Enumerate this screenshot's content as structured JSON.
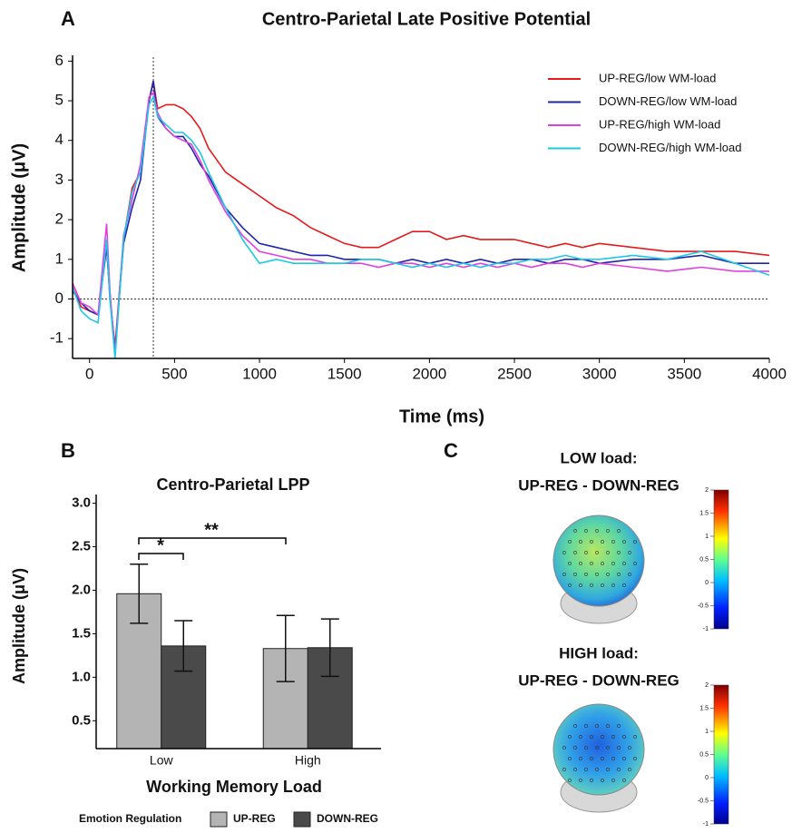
{
  "chart_data": [
    {
      "type": "line",
      "panel": "A",
      "title": "Centro-Parietal Late Positive Potential",
      "xlabel": "Time (ms)",
      "ylabel": "Amplitude (μV)",
      "x": [
        -100,
        -50,
        0,
        50,
        100,
        120,
        150,
        200,
        250,
        300,
        350,
        375,
        400,
        450,
        500,
        550,
        600,
        650,
        700,
        800,
        900,
        1000,
        1100,
        1200,
        1300,
        1400,
        1500,
        1600,
        1700,
        1800,
        1900,
        2000,
        2100,
        2200,
        2300,
        2400,
        2500,
        2600,
        2700,
        2800,
        2900,
        3000,
        3200,
        3400,
        3600,
        3800,
        4000
      ],
      "series": [
        {
          "name": "UP-REG/low WM-load",
          "color": "#e41a1c",
          "values": [
            0.3,
            -0.2,
            -0.3,
            -0.4,
            1.4,
            0.0,
            -1.2,
            1.5,
            2.8,
            3.2,
            5.0,
            5.5,
            4.8,
            4.9,
            4.9,
            4.8,
            4.6,
            4.3,
            3.8,
            3.2,
            2.9,
            2.6,
            2.3,
            2.1,
            1.8,
            1.6,
            1.4,
            1.3,
            1.3,
            1.5,
            1.7,
            1.7,
            1.5,
            1.6,
            1.5,
            1.5,
            1.5,
            1.4,
            1.3,
            1.4,
            1.3,
            1.4,
            1.3,
            1.2,
            1.2,
            1.2,
            1.1
          ]
        },
        {
          "name": "DOWN-REG/low WM-load",
          "color": "#1f24a8",
          "values": [
            0.2,
            -0.1,
            -0.3,
            -0.4,
            1.3,
            0.1,
            -1.3,
            1.4,
            2.3,
            3.0,
            5.0,
            5.5,
            4.6,
            4.3,
            4.1,
            4.1,
            3.8,
            3.4,
            3.1,
            2.3,
            1.8,
            1.4,
            1.3,
            1.2,
            1.1,
            1.1,
            1.0,
            1.0,
            1.0,
            0.9,
            1.0,
            0.9,
            1.0,
            0.9,
            1.0,
            0.9,
            1.0,
            1.0,
            0.9,
            1.0,
            1.0,
            0.9,
            1.0,
            1.0,
            1.1,
            0.9,
            0.9
          ]
        },
        {
          "name": "UP-REG/high WM-load",
          "color": "#e040e0",
          "values": [
            0.4,
            -0.1,
            -0.2,
            -0.4,
            1.9,
            0.2,
            -1.4,
            1.6,
            2.5,
            3.4,
            5.1,
            5.2,
            4.7,
            4.3,
            4.1,
            4.0,
            3.9,
            3.5,
            3.0,
            2.2,
            1.6,
            1.2,
            1.1,
            1.0,
            1.0,
            0.9,
            0.9,
            0.9,
            0.8,
            0.9,
            0.9,
            0.8,
            0.9,
            0.8,
            0.9,
            0.8,
            0.9,
            0.8,
            0.9,
            0.9,
            0.8,
            0.9,
            0.8,
            0.7,
            0.8,
            0.7,
            0.7
          ]
        },
        {
          "name": "DOWN-REG/high WM-load",
          "color": "#1ec8e6",
          "values": [
            0.3,
            -0.3,
            -0.5,
            -0.6,
            1.5,
            0.0,
            -1.5,
            1.5,
            2.7,
            3.2,
            4.9,
            5.1,
            4.6,
            4.4,
            4.2,
            4.2,
            4.0,
            3.7,
            3.2,
            2.3,
            1.5,
            0.9,
            1.0,
            0.9,
            0.9,
            0.9,
            0.9,
            1.0,
            1.0,
            0.9,
            0.8,
            0.9,
            0.8,
            0.9,
            0.8,
            0.9,
            0.9,
            1.0,
            1.0,
            1.1,
            1.0,
            1.0,
            1.1,
            1.0,
            1.2,
            0.9,
            0.6
          ]
        }
      ],
      "xlim": [
        -100,
        4000
      ],
      "ylim": [
        -1.5,
        6.1
      ],
      "xticks": [
        0,
        500,
        1000,
        1500,
        2000,
        2500,
        3000,
        3500,
        4000
      ],
      "yticks": [
        -1,
        0,
        1,
        2,
        3,
        4,
        5,
        6
      ],
      "reference_lines": {
        "x": 375,
        "y": 0
      }
    },
    {
      "type": "bar",
      "panel": "B",
      "title": "Centro-Parietal LPP",
      "xlabel": "Working Memory Load",
      "ylabel": "Amplitude (μV)",
      "categories": [
        "Low",
        "High"
      ],
      "series": [
        {
          "name": "UP-REG",
          "color": "#b4b4b4",
          "values": [
            1.96,
            1.33
          ],
          "errors": [
            0.34,
            0.38
          ]
        },
        {
          "name": "DOWN-REG",
          "color": "#4a4a4a",
          "values": [
            1.36,
            1.34
          ],
          "errors": [
            0.29,
            0.33
          ]
        }
      ],
      "ylim": [
        0.18,
        3.1
      ],
      "yticks": [
        {
          "value": 0.5,
          "label": "0.5"
        },
        {
          "value": 1,
          "label": "1.0"
        },
        {
          "value": 1.5,
          "label": "1.5"
        },
        {
          "value": 2,
          "label": "2.0"
        },
        {
          "value": 2.5,
          "label": "2.5"
        },
        {
          "value": 3,
          "label": "3.0"
        }
      ],
      "legend_title": "Emotion Regulation",
      "annotations": [
        "*",
        "**"
      ]
    },
    {
      "type": "topomap",
      "panel": "C",
      "title": [
        "LOW load:",
        "UP-REG - DOWN-REG"
      ],
      "clim": [
        -1,
        2
      ],
      "colorbar_ticks": [
        2,
        1.5,
        1,
        0.5,
        0,
        -0.5,
        -1
      ]
    },
    {
      "type": "topomap",
      "title": [
        "HIGH load:",
        "UP-REG - DOWN-REG"
      ],
      "clim": [
        -1,
        2
      ],
      "colorbar_ticks": [
        2,
        1.5,
        1,
        0.5,
        0,
        -0.5,
        -1
      ]
    }
  ]
}
